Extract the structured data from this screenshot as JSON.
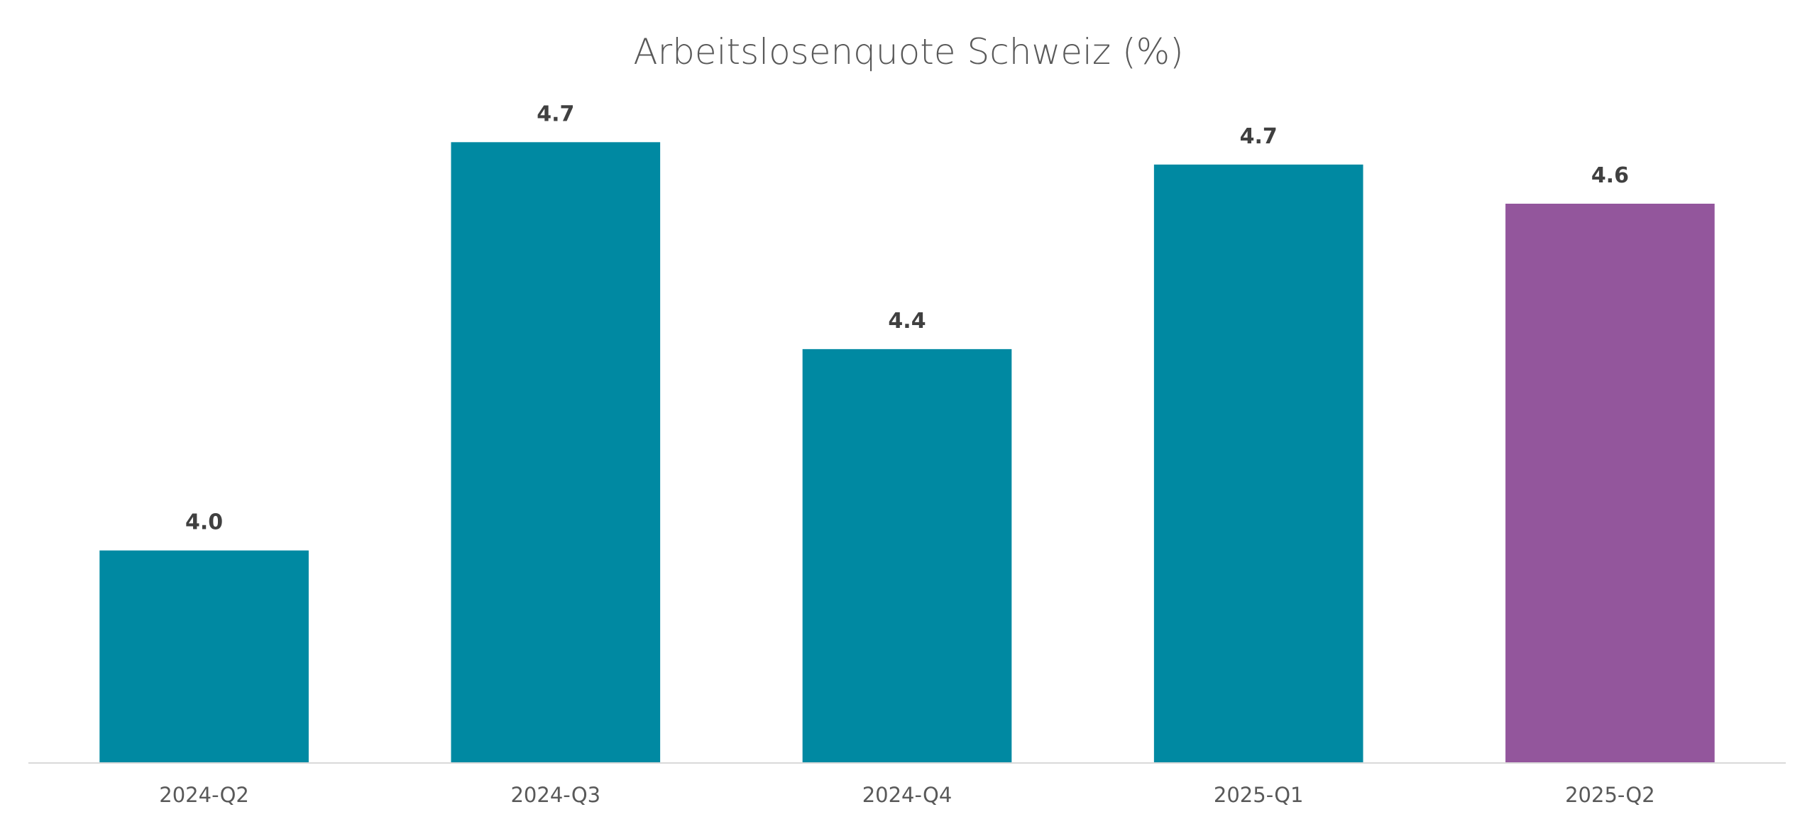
{
  "chart_data": {
    "type": "bar",
    "title": "Arbeitslosenquote Schweiz (%)",
    "xlabel": "",
    "ylabel": "",
    "categories": [
      "2024-Q2",
      "2024-Q3",
      "2024-Q4",
      "2025-Q1",
      "2025-Q2"
    ],
    "values": [
      4.0,
      4.73,
      4.36,
      4.69,
      4.62
    ],
    "data_labels": [
      "4.0",
      "4.7",
      "4.4",
      "4.7",
      "4.6"
    ],
    "ylim": [
      3.62,
      4.87
    ],
    "grid": false,
    "legend": "none",
    "colors": {
      "default": "#0089A2",
      "highlight": "#93569C",
      "highlight_category": "2025-Q2",
      "axis": "#D9D9D9"
    }
  }
}
